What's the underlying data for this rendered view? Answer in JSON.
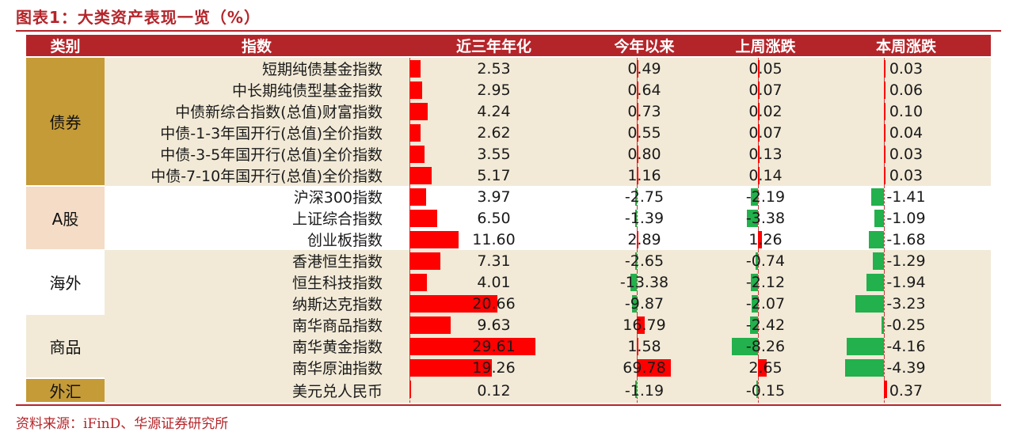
{
  "title": "图表1：大类资产表现一览（%）",
  "source": "资料来源：iFinD、华源证券研究所",
  "colors": {
    "header": "#b4252a",
    "positive": "#ff0000",
    "negative": "#22b14c",
    "gold": "#c59b38",
    "band": "#f2ead7"
  },
  "headers": {
    "category": "类别",
    "name": "指数",
    "c1": "近三年年化",
    "c2": "今年以来",
    "c3": "上周涨跌",
    "c4": "本周涨跌"
  },
  "groups": [
    {
      "label": "债券",
      "rows": [
        {
          "name": "短期纯债基金指数",
          "v": [
            "2.53",
            "0.49",
            "0.05",
            "0.03"
          ]
        },
        {
          "name": "中长期纯债型基金指数",
          "v": [
            "2.95",
            "0.64",
            "0.07",
            "0.06"
          ]
        },
        {
          "name": "中债新综合指数(总值)财富指数",
          "v": [
            "4.24",
            "0.73",
            "0.02",
            "0.10"
          ]
        },
        {
          "name": "中债-1-3年国开行(总值)全价指数",
          "v": [
            "2.62",
            "0.55",
            "0.07",
            "0.04"
          ]
        },
        {
          "name": "中债-3-5年国开行(总值)全价指数",
          "v": [
            "3.55",
            "0.80",
            "0.13",
            "0.03"
          ]
        },
        {
          "name": "中债-7-10年国开行(总值)全价指数",
          "v": [
            "5.17",
            "1.16",
            "0.14",
            "0.03"
          ]
        }
      ]
    },
    {
      "label": "A股",
      "rows": [
        {
          "name": "沪深300指数",
          "v": [
            "3.97",
            "-2.75",
            "-2.19",
            "-1.41"
          ]
        },
        {
          "name": "上证综合指数",
          "v": [
            "6.50",
            "-1.39",
            "-3.38",
            "-1.09"
          ]
        },
        {
          "name": "创业板指数",
          "v": [
            "11.60",
            "2.89",
            "1.26",
            "-1.68"
          ]
        }
      ]
    },
    {
      "label": "海外",
      "rows": [
        {
          "name": "香港恒生指数",
          "v": [
            "7.31",
            "-2.65",
            "-0.74",
            "-1.29"
          ]
        },
        {
          "name": "恒生科技指数",
          "v": [
            "4.01",
            "-13.38",
            "-2.12",
            "-1.94"
          ]
        },
        {
          "name": "纳斯达克指数",
          "v": [
            "20.66",
            "-9.87",
            "-2.07",
            "-3.23"
          ]
        }
      ]
    },
    {
      "label": "商品",
      "rows": [
        {
          "name": "南华商品指数",
          "v": [
            "9.63",
            "16.79",
            "-2.42",
            "-0.25"
          ]
        },
        {
          "name": "南华黄金指数",
          "v": [
            "29.61",
            "1.58",
            "-8.26",
            "-4.16"
          ]
        },
        {
          "name": "南华原油指数",
          "v": [
            "19.26",
            "69.78",
            "2.65",
            "-4.39"
          ]
        }
      ]
    },
    {
      "label": "外汇",
      "rows": [
        {
          "name": "美元兑人民币",
          "v": [
            "0.12",
            "-1.19",
            "-0.15",
            "0.37"
          ]
        }
      ]
    }
  ]
}
